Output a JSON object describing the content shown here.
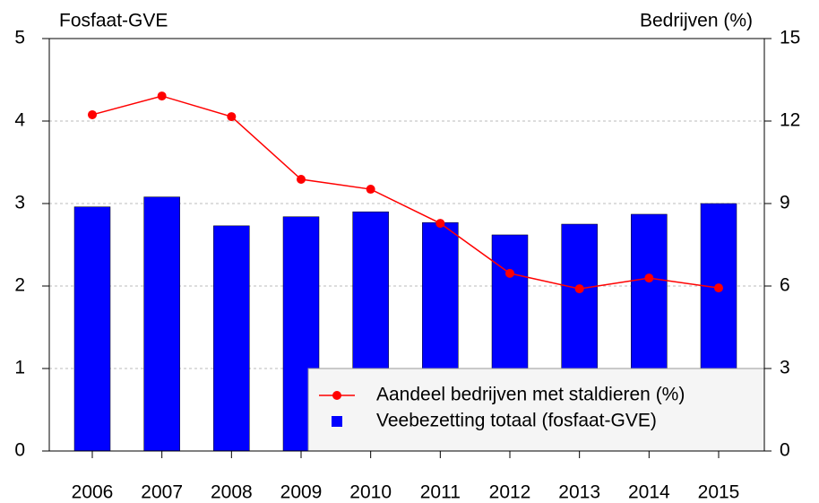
{
  "chart_data": {
    "type": "bar-line",
    "ylabel": "Fosfaat-GVE",
    "y2label": "Bedrijven (%)",
    "categories": [
      "2006",
      "2007",
      "2008",
      "2009",
      "2010",
      "2011",
      "2012",
      "2013",
      "2014",
      "2015"
    ],
    "series": [
      {
        "name": "Aandeel bedrijven met staldieren (%)",
        "type": "line",
        "color": "#ff0000",
        "axis": "y2",
        "values": [
          12.23,
          12.91,
          12.16,
          9.88,
          9.52,
          8.28,
          6.46,
          5.9,
          6.29,
          5.93
        ]
      },
      {
        "name": "Veebezetting totaal (fosfaat-GVE)",
        "type": "bar",
        "color": "#0000ff",
        "values": [
          2.96,
          3.08,
          2.73,
          2.84,
          2.9,
          2.77,
          2.62,
          2.75,
          2.87,
          3.0
        ]
      }
    ],
    "ylim": [
      0,
      5
    ],
    "yticks": [
      0,
      1,
      2,
      3,
      4,
      5
    ],
    "y2lim": [
      0,
      15
    ],
    "y2ticks": [
      0,
      3,
      6,
      9,
      12,
      15
    ],
    "grid": true,
    "legend": "bottom-right"
  }
}
